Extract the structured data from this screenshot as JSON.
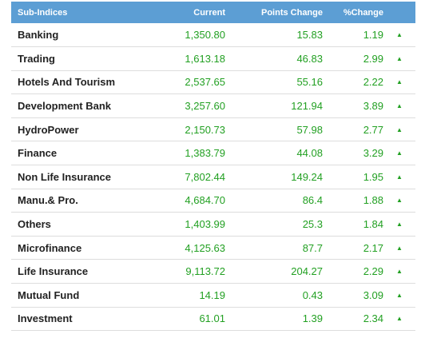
{
  "header": {
    "name": "Sub-Indices",
    "current": "Current",
    "points_change": "Points Change",
    "percent_change": "%Change"
  },
  "colors": {
    "header_bg": "#5c9ed4",
    "up": "#22a022"
  },
  "rows": [
    {
      "name": "Banking",
      "current": "1,350.80",
      "points": "15.83",
      "percent": "1.19",
      "trend": "up-arrow-icon"
    },
    {
      "name": "Trading",
      "current": "1,613.18",
      "points": "46.83",
      "percent": "2.99",
      "trend": "up-arrow-icon"
    },
    {
      "name": "Hotels And Tourism",
      "current": "2,537.65",
      "points": "55.16",
      "percent": "2.22",
      "trend": "up-arrow-icon"
    },
    {
      "name": "Development Bank",
      "current": "3,257.60",
      "points": "121.94",
      "percent": "3.89",
      "trend": "up-arrow-icon"
    },
    {
      "name": "HydroPower",
      "current": "2,150.73",
      "points": "57.98",
      "percent": "2.77",
      "trend": "up-arrow-icon"
    },
    {
      "name": "Finance",
      "current": "1,383.79",
      "points": "44.08",
      "percent": "3.29",
      "trend": "up-arrow-icon"
    },
    {
      "name": "Non Life Insurance",
      "current": "7,802.44",
      "points": "149.24",
      "percent": "1.95",
      "trend": "up-arrow-icon"
    },
    {
      "name": "Manu.& Pro.",
      "current": "4,684.70",
      "points": "86.4",
      "percent": "1.88",
      "trend": "up-arrow-icon"
    },
    {
      "name": "Others",
      "current": "1,403.99",
      "points": "25.3",
      "percent": "1.84",
      "trend": "up-arrow-icon"
    },
    {
      "name": "Microfinance",
      "current": "4,125.63",
      "points": "87.7",
      "percent": "2.17",
      "trend": "up-arrow-icon"
    },
    {
      "name": "Life Insurance",
      "current": "9,113.72",
      "points": "204.27",
      "percent": "2.29",
      "trend": "up-arrow-icon"
    },
    {
      "name": "Mutual Fund",
      "current": "14.19",
      "points": "0.43",
      "percent": "3.09",
      "trend": "up-arrow-icon"
    },
    {
      "name": "Investment",
      "current": "61.01",
      "points": "1.39",
      "percent": "2.34",
      "trend": "up-arrow-icon"
    }
  ]
}
